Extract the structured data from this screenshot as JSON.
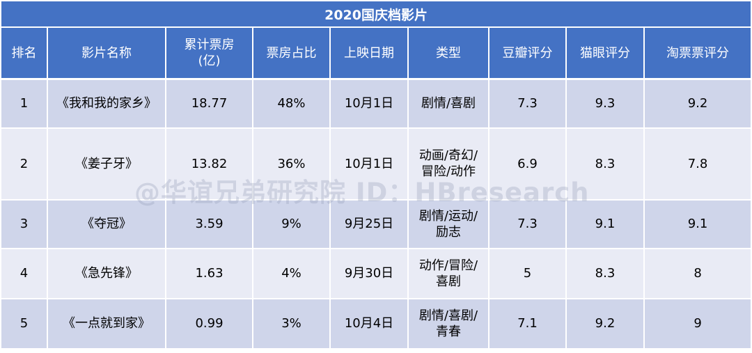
{
  "title": "2020国庆档影片",
  "headers": [
    "排名",
    "影片名称",
    "累计票房\n(亿)",
    "票房占比",
    "上映日期",
    "类型",
    "豆瓣评分",
    "猫眼评分",
    "淘票票评分"
  ],
  "rows": [
    [
      "1",
      "《我和我的家乡》",
      "18.77",
      "48%",
      "10月1日",
      "剧情/喜剧",
      "7.3",
      "9.3",
      "9.2"
    ],
    [
      "2",
      "《姜子牙》",
      "13.82",
      "36%",
      "10月1日",
      "动画/奇幻/\n冒险/动作",
      "6.9",
      "8.3",
      "7.8"
    ],
    [
      "3",
      "《夺冠》",
      "3.59",
      "9%",
      "9月25日",
      "剧情/运动/\n励志",
      "7.3",
      "9.1",
      "9.1"
    ],
    [
      "4",
      "《急先锋》",
      "1.63",
      "4%",
      "9月30日",
      "动作/冒险/\n喜剧",
      "5",
      "8.3",
      "8"
    ],
    [
      "5",
      "《一点就到家》",
      "0.99",
      "3%",
      "10月4日",
      "剧情/喜剧/\n青春",
      "7.1",
      "9.2",
      "9"
    ]
  ],
  "watermark": "@华谊兄弟研究院 ID：HBresearch",
  "colors": {
    "header_bg": "#4472c4",
    "row_dark": "#cfd5ea",
    "row_light": "#e9ebf5",
    "header_text": "#ffffff"
  }
}
